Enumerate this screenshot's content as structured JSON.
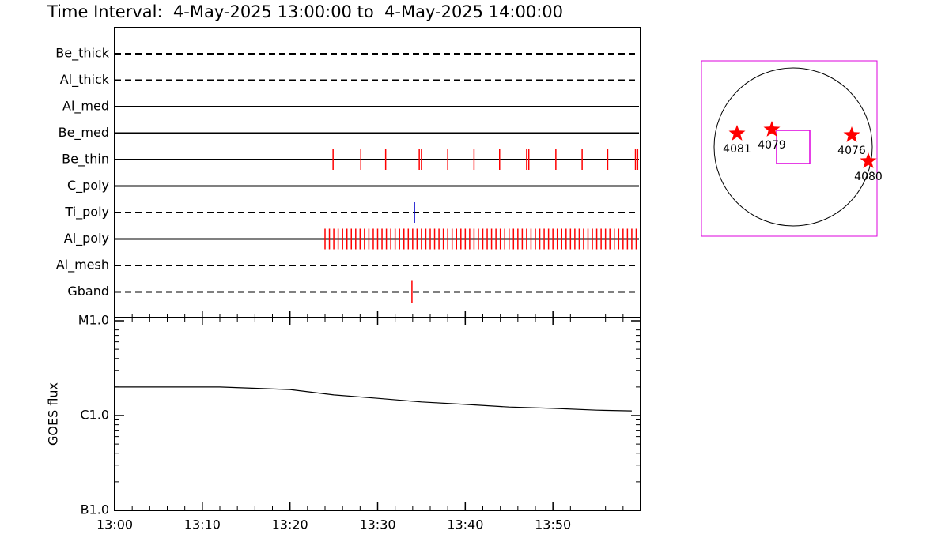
{
  "chart_data": [
    {
      "type": "timeline",
      "title": "Time Interval:  4-May-2025 13:00:00 to  4-May-2025 14:00:00",
      "rows": [
        {
          "name": "Be_thick",
          "style": "dashed",
          "color": "#ff0000",
          "events": []
        },
        {
          "name": "Al_thick",
          "style": "dashed",
          "color": "#ff0000",
          "events": []
        },
        {
          "name": "Al_med",
          "style": "solid",
          "color": "#ff0000",
          "events": []
        },
        {
          "name": "Be_med",
          "style": "solid",
          "color": "#ff0000",
          "events": []
        },
        {
          "name": "Be_thin",
          "style": "solid",
          "color": "#ff0000",
          "events": [
            "13:24:55",
            "13:28:05",
            "13:30:55",
            "13:34:45",
            "13:35:00",
            "13:38:00",
            "13:41:00",
            "13:43:55",
            "13:47:00",
            "13:47:15",
            "13:50:20",
            "13:53:20",
            "13:56:15",
            "13:59:25",
            "13:59:40"
          ]
        },
        {
          "name": "C_poly",
          "style": "solid",
          "color": "#ff0000",
          "events": []
        },
        {
          "name": "Ti_poly",
          "style": "dashed",
          "color": "#0000cc",
          "events": [
            "13:34:12"
          ]
        },
        {
          "name": "Al_poly",
          "style": "solid",
          "color": "#ff0000",
          "events": [
            "13:24:00",
            "13:24:30",
            "13:25:00",
            "13:25:30",
            "13:26:00",
            "13:26:30",
            "13:27:00",
            "13:27:30",
            "13:28:00",
            "13:28:30",
            "13:29:00",
            "13:29:30",
            "13:30:00",
            "13:30:30",
            "13:31:00",
            "13:31:30",
            "13:32:00",
            "13:32:30",
            "13:33:00",
            "13:33:30",
            "13:34:00",
            "13:34:30",
            "13:35:00",
            "13:35:30",
            "13:36:00",
            "13:36:30",
            "13:37:00",
            "13:37:30",
            "13:38:00",
            "13:38:30",
            "13:39:00",
            "13:39:30",
            "13:40:00",
            "13:40:30",
            "13:41:00",
            "13:41:30",
            "13:42:00",
            "13:42:30",
            "13:43:00",
            "13:43:30",
            "13:44:00",
            "13:44:30",
            "13:45:00",
            "13:45:30",
            "13:46:00",
            "13:46:30",
            "13:47:00",
            "13:47:30",
            "13:48:00",
            "13:48:30",
            "13:49:00",
            "13:49:30",
            "13:50:00",
            "13:50:30",
            "13:51:00",
            "13:51:30",
            "13:52:00",
            "13:52:30",
            "13:53:00",
            "13:53:30",
            "13:54:00",
            "13:54:30",
            "13:55:00",
            "13:55:30",
            "13:56:00",
            "13:56:30",
            "13:57:00",
            "13:57:30",
            "13:58:00",
            "13:58:30",
            "13:59:00",
            "13:59:30"
          ]
        },
        {
          "name": "Al_mesh",
          "style": "dashed",
          "color": "#ff0000",
          "events": []
        },
        {
          "name": "Gband",
          "style": "dashed",
          "color": "#ff0000",
          "events": [
            "13:33:55"
          ]
        }
      ]
    },
    {
      "type": "line",
      "ylabel": "GOES flux",
      "log": true,
      "color": "#000000",
      "x": [
        "13:00",
        "13:12",
        "13:20",
        "13:25",
        "13:30",
        "13:35",
        "13:40",
        "13:45",
        "13:50",
        "13:55",
        "13:59"
      ],
      "values": [
        2e-06,
        2e-06,
        1.88e-06,
        1.65e-06,
        1.52e-06,
        1.39e-06,
        1.31e-06,
        1.23e-06,
        1.19e-06,
        1.14e-06,
        1.12e-06
      ],
      "xlim": [
        "13:00",
        "14:00"
      ],
      "xticks": [
        "13:00",
        "13:10",
        "13:20",
        "13:30",
        "13:40",
        "13:50"
      ],
      "ylim": [
        1e-07,
        1e-05
      ],
      "yticks": [
        {
          "value": 1e-07,
          "label": "B1.0"
        },
        {
          "value": 1e-06,
          "label": "C1.0"
        },
        {
          "value": 1e-05,
          "label": "M1.0"
        }
      ]
    }
  ],
  "map": {
    "regions": [
      "4081",
      "4079",
      "4076",
      "4080"
    ]
  }
}
